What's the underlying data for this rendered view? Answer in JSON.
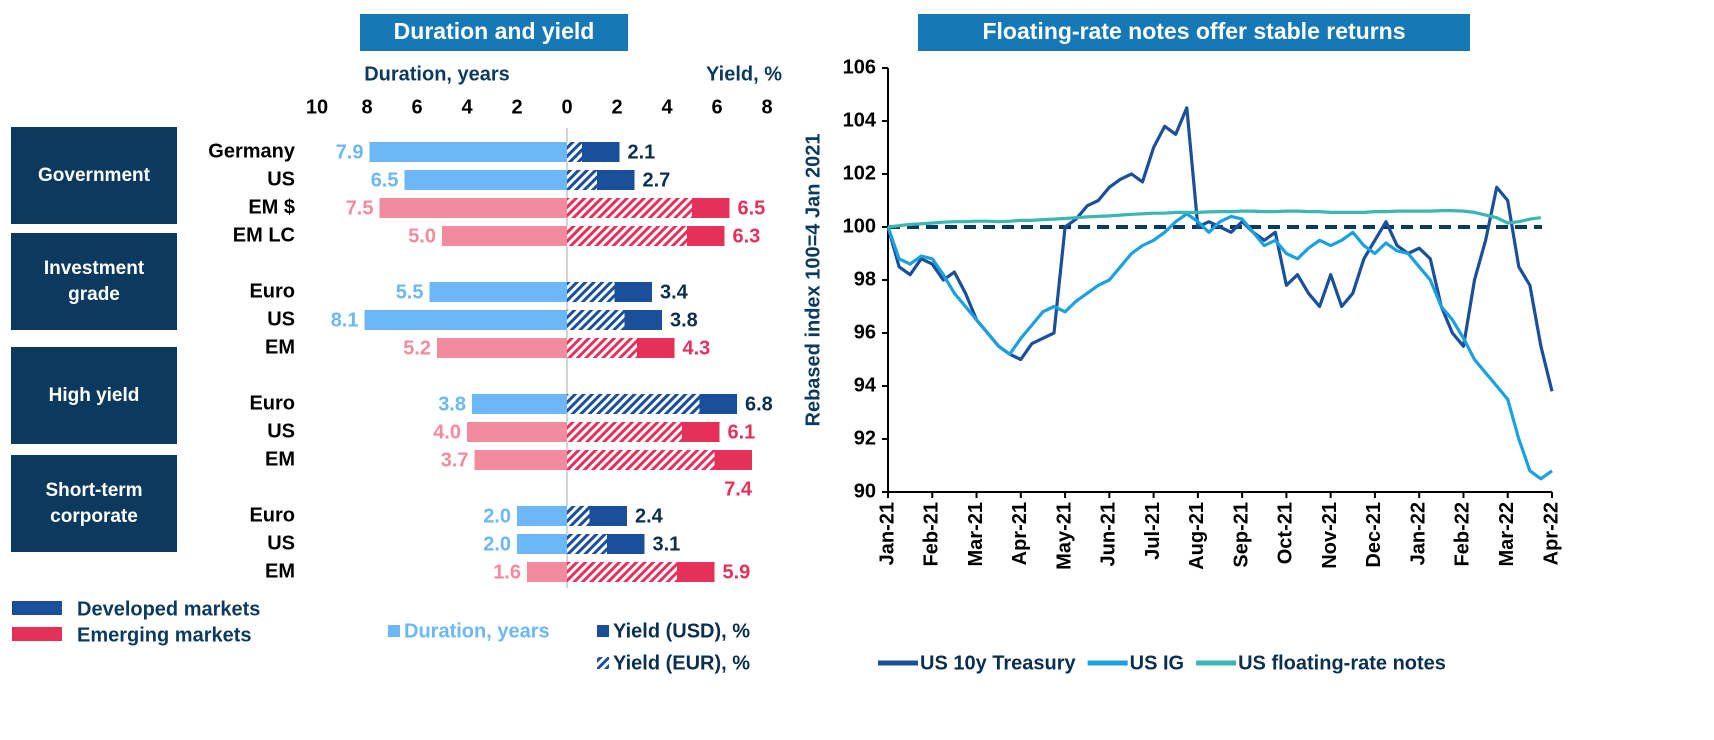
{
  "chart_data": [
    {
      "type": "butterfly",
      "title": "Duration and yield",
      "xlabel_left": "Duration, years",
      "xlabel_right": "Yield, %",
      "xlim_left": [
        0,
        10
      ],
      "xticks_left": [
        0,
        2,
        4,
        6,
        8,
        10
      ],
      "xlim_right": [
        0,
        8
      ],
      "xticks_right": [
        2,
        4,
        6,
        8
      ],
      "markets": [
        {
          "name": "Developed markets",
          "duration_color": "#6cb8f6",
          "yield_color": "#1a4f9a",
          "yield_label_color": "#0b2f4f"
        },
        {
          "name": "Emerging markets",
          "duration_color": "#f28b9e",
          "yield_color": "#e5315a",
          "yield_label_color": "#e5315a"
        }
      ],
      "series_legend": [
        {
          "name": "Duration, years",
          "color": "#6cb8f6"
        },
        {
          "name": "Yield (USD), %",
          "color": "#1a4f9a"
        },
        {
          "name": "Yield (EUR), %",
          "pattern": "hatch",
          "color": "#1a4f9a"
        }
      ],
      "groups": [
        {
          "name": "Government",
          "categories": [
            "Germany",
            "US",
            "EM  $",
            "EM LC"
          ],
          "market": [
            "Developed markets",
            "Developed markets",
            "Emerging markets",
            "Emerging markets"
          ],
          "duration": [
            7.9,
            6.5,
            7.5,
            5.0
          ],
          "duration_value_labels": [
            "7.9",
            "6.5",
            "7.5",
            "5.0"
          ],
          "yield_usd": [
            2.1,
            2.7,
            6.5,
            6.3
          ],
          "yield_eur": [
            0.6,
            1.2,
            5.0,
            4.8
          ]
        },
        {
          "name": "Investment grade",
          "categories": [
            "Euro",
            "US",
            "EM"
          ],
          "market": [
            "Developed markets",
            "Developed markets",
            "Emerging markets"
          ],
          "duration": [
            5.5,
            8.1,
            5.2
          ],
          "duration_value_labels": [
            "5.5",
            "8.1",
            "5.2"
          ],
          "yield_usd": [
            3.4,
            3.8,
            4.3
          ],
          "yield_eur": [
            1.9,
            2.3,
            2.8
          ]
        },
        {
          "name": "High yield",
          "categories": [
            "Euro",
            "US",
            "EM"
          ],
          "market": [
            "Developed markets",
            "Emerging markets",
            "Emerging markets"
          ],
          "duration": [
            3.8,
            4.0,
            3.7
          ],
          "duration_value_labels": [
            "3.8",
            "4.0",
            "3.7"
          ],
          "yield_usd": [
            6.8,
            6.1,
            7.4
          ],
          "yield_eur": [
            5.3,
            4.6,
            5.9
          ]
        },
        {
          "name": "Short-term corporate",
          "categories": [
            "Euro",
            "US",
            "EM"
          ],
          "market": [
            "Developed markets",
            "Developed markets",
            "Emerging markets"
          ],
          "duration": [
            2.0,
            2.0,
            1.6
          ],
          "duration_value_labels": [
            "2.0",
            "2.0",
            "1.6"
          ],
          "yield_usd": [
            2.4,
            3.1,
            5.9
          ],
          "yield_eur": [
            0.9,
            1.6,
            4.4
          ]
        }
      ]
    },
    {
      "type": "line",
      "title": "Floating-rate notes offer stable returns",
      "ylabel": "Rebased index 100=4 Jan 2021",
      "x": [
        "Jan-21",
        null,
        null,
        null,
        "Feb-21",
        null,
        null,
        null,
        "Mar-21",
        null,
        null,
        null,
        "Apr-21",
        null,
        null,
        null,
        "May-21",
        null,
        null,
        null,
        "Jun-21",
        null,
        null,
        null,
        "Jul-21",
        null,
        null,
        null,
        "Aug-21",
        null,
        null,
        null,
        "Sep-21",
        null,
        null,
        null,
        "Oct-21",
        null,
        null,
        null,
        "Nov-21",
        null,
        null,
        null,
        "Dec-21",
        null,
        null,
        null,
        "Jan-22",
        null,
        null,
        null,
        "Feb-22",
        null,
        null,
        null,
        "Mar-22",
        null,
        null,
        null,
        "Apr-22"
      ],
      "ylim": [
        90,
        106
      ],
      "yticks": [
        90,
        92,
        94,
        96,
        98,
        100,
        102,
        104,
        106
      ],
      "hline": {
        "value": 100,
        "color": "#0b3a5e",
        "style": "dashed"
      },
      "legend": "bottom",
      "series": [
        {
          "name": "US 10y Treasury",
          "color": "#1a4f9a",
          "values": [
            100.0,
            98.5,
            98.2,
            98.8,
            98.6,
            98.0,
            98.3,
            97.5,
            96.5,
            96.0,
            95.5,
            95.2,
            95.0,
            95.6,
            95.8,
            96.0,
            100.0,
            100.3,
            100.8,
            101.0,
            101.5,
            101.8,
            102.0,
            101.7,
            103.0,
            103.8,
            103.5,
            104.5,
            100.0,
            100.2,
            100.0,
            99.8,
            100.2,
            99.8,
            99.5,
            99.8,
            97.8,
            98.2,
            97.5,
            97.0,
            98.2,
            97.0,
            97.5,
            98.8,
            99.5,
            100.2,
            99.3,
            99.0,
            99.2,
            98.8,
            97.0,
            96.0,
            95.5,
            98.0,
            99.5,
            101.5,
            101.0,
            98.5,
            97.8,
            95.5,
            93.8
          ]
        },
        {
          "name": "US IG",
          "color": "#1ba0e0",
          "values": [
            100.0,
            98.8,
            98.6,
            98.9,
            98.8,
            98.2,
            97.5,
            97.0,
            96.5,
            96.0,
            95.5,
            95.2,
            95.8,
            96.3,
            96.8,
            97.0,
            96.8,
            97.2,
            97.5,
            97.8,
            98.0,
            98.5,
            99.0,
            99.3,
            99.5,
            99.8,
            100.2,
            100.5,
            100.2,
            99.8,
            100.2,
            100.4,
            100.3,
            99.8,
            99.3,
            99.5,
            99.0,
            98.8,
            99.2,
            99.5,
            99.3,
            99.5,
            99.8,
            99.3,
            99.0,
            99.4,
            99.1,
            99.0,
            98.5,
            98.0,
            97.0,
            96.5,
            95.8,
            95.0,
            94.5,
            94.0,
            93.5,
            92.0,
            90.8,
            90.5,
            90.8
          ]
        },
        {
          "name": "US floating-rate notes",
          "color": "#3bb6b0",
          "values": [
            100.0,
            100.05,
            100.1,
            100.12,
            100.15,
            100.18,
            100.2,
            100.2,
            100.22,
            100.22,
            100.2,
            100.22,
            100.25,
            100.25,
            100.28,
            100.3,
            100.32,
            100.35,
            100.38,
            100.4,
            100.42,
            100.45,
            100.48,
            100.5,
            100.52,
            100.52,
            100.55,
            100.55,
            100.55,
            100.57,
            100.58,
            100.58,
            100.6,
            100.6,
            100.58,
            100.58,
            100.6,
            100.6,
            100.58,
            100.58,
            100.55,
            100.55,
            100.55,
            100.55,
            100.58,
            100.58,
            100.6,
            100.6,
            100.6,
            100.6,
            100.62,
            100.62,
            100.6,
            100.55,
            100.45,
            100.35,
            100.15,
            100.2,
            100.3,
            100.35,
            null
          ]
        }
      ]
    }
  ]
}
